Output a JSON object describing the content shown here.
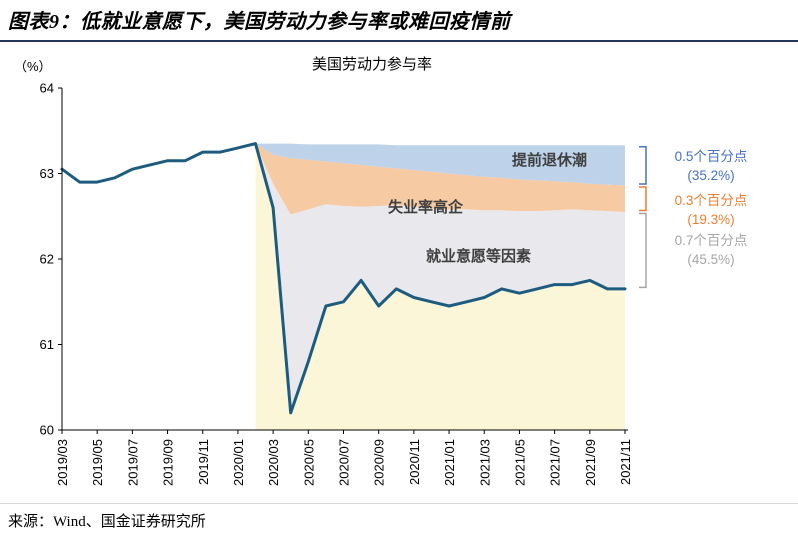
{
  "page": {
    "title": "图表9：低就业意愿下，美国劳动力参与率或难回疫情前",
    "source": "来源：Wind、国金证券研究所"
  },
  "chart_data": {
    "type": "area",
    "title": "美国劳动力参与率",
    "unit_label": "（%）",
    "ylim": [
      60,
      64
    ],
    "yticks": [
      60,
      61,
      62,
      63,
      64
    ],
    "xtick_every": 2,
    "grid": false,
    "legend_position": "none",
    "x": [
      "2019/03",
      "2019/04",
      "2019/05",
      "2019/06",
      "2019/07",
      "2019/08",
      "2019/09",
      "2019/10",
      "2019/11",
      "2019/12",
      "2020/01",
      "2020/02",
      "2020/03",
      "2020/04",
      "2020/05",
      "2020/06",
      "2020/07",
      "2020/08",
      "2020/09",
      "2020/10",
      "2020/11",
      "2020/12",
      "2021/01",
      "2021/02",
      "2021/03",
      "2021/04",
      "2021/05",
      "2021/06",
      "2021/07",
      "2021/08",
      "2021/09",
      "2021/10",
      "2021/11"
    ],
    "line": {
      "name": "美国劳动力参与率",
      "color": "#1d5c7e",
      "values": [
        63.05,
        62.9,
        62.9,
        62.95,
        63.05,
        63.1,
        63.15,
        63.15,
        63.25,
        63.25,
        63.3,
        63.35,
        62.6,
        60.2,
        60.8,
        61.45,
        61.5,
        61.75,
        61.45,
        61.65,
        61.55,
        61.5,
        61.45,
        61.5,
        61.55,
        61.65,
        61.6,
        61.65,
        61.7,
        61.7,
        61.75,
        61.65,
        61.65
      ]
    },
    "decomposition_start_index": 11,
    "boundaries": {
      "top": [
        63.35,
        63.35,
        63.35,
        63.34,
        63.34,
        63.34,
        63.34,
        63.34,
        63.33,
        63.33,
        63.33,
        63.33,
        63.33,
        63.33,
        63.33,
        63.33,
        63.33,
        63.33,
        63.33,
        63.33,
        63.33,
        63.33
      ],
      "blue_bottom": [
        63.35,
        63.22,
        63.18,
        63.16,
        63.14,
        63.12,
        63.1,
        63.08,
        63.06,
        63.04,
        63.02,
        63.0,
        62.98,
        62.96,
        62.95,
        62.93,
        62.92,
        62.91,
        62.9,
        62.88,
        62.87,
        62.86
      ],
      "orange_bottom": [
        63.35,
        62.88,
        62.52,
        62.58,
        62.64,
        62.62,
        62.61,
        62.62,
        62.63,
        62.61,
        62.59,
        62.58,
        62.58,
        62.57,
        62.57,
        62.56,
        62.56,
        62.57,
        62.58,
        62.57,
        62.56,
        62.55
      ]
    },
    "bands": [
      {
        "label": "提前退休潮",
        "fill": "#bed3ea",
        "color": "#4472c4",
        "annotation_line1": "0.5个百分点",
        "annotation_line2": "(35.2%)"
      },
      {
        "label": "失业率高企",
        "fill": "#f6caa2",
        "color": "#ed7d31",
        "annotation_line1": "0.3个百分点",
        "annotation_line2": "(19.3%)"
      },
      {
        "label": "就业意愿等因素",
        "fill": "#e9e9ed",
        "color": "#a6a6a6",
        "annotation_line1": "0.7个百分点",
        "annotation_line2": "(45.5%)"
      }
    ],
    "residual_fill": "#fcf6d9"
  }
}
